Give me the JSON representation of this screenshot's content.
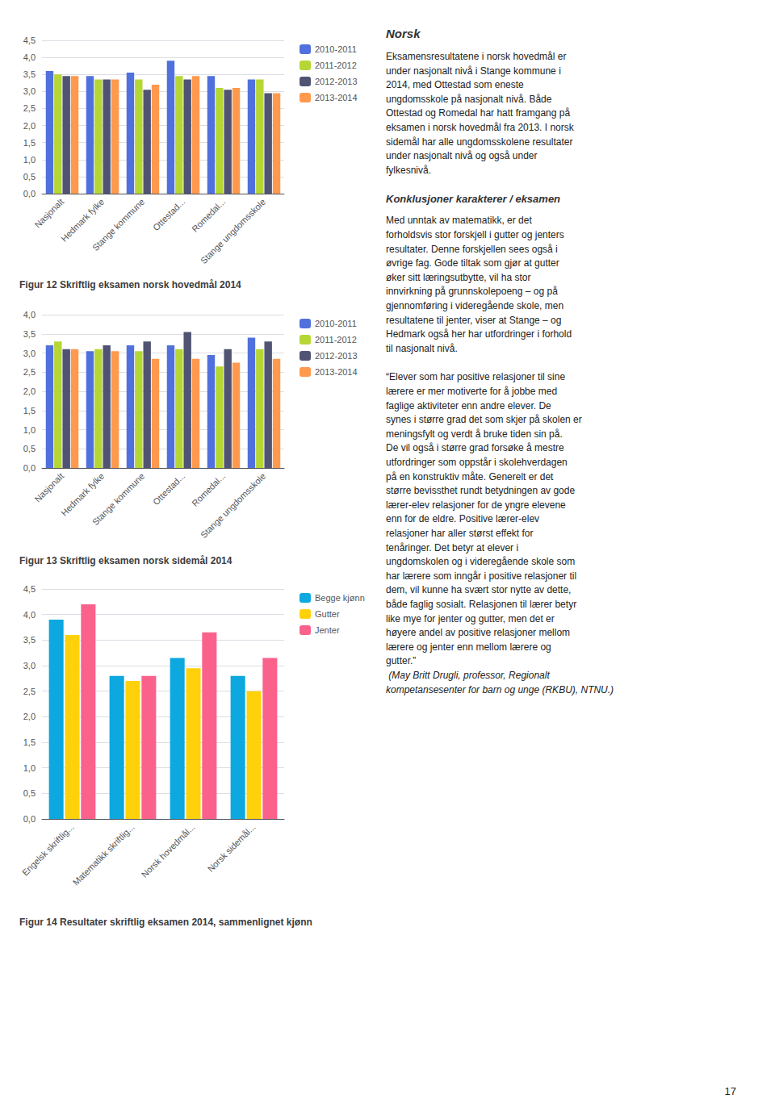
{
  "chart_data": [
    {
      "type": "bar",
      "title": "Figur 12 Skriftlig eksamen norsk hovedmål 2014",
      "categories": [
        "Nasjonalt",
        "Hedmark fylke",
        "Stange kommune",
        "Ottestad...",
        "Romedal...",
        "Stange ungdomsskole"
      ],
      "series": [
        {
          "name": "2010-2011",
          "values": [
            3.6,
            3.45,
            3.55,
            3.9,
            3.45,
            3.35
          ]
        },
        {
          "name": "2011-2012",
          "values": [
            3.5,
            3.35,
            3.35,
            3.45,
            3.1,
            3.35
          ]
        },
        {
          "name": "2012-2013",
          "values": [
            3.45,
            3.35,
            3.05,
            3.35,
            3.05,
            2.95
          ]
        },
        {
          "name": "2013-2014",
          "values": [
            3.45,
            3.35,
            3.2,
            3.45,
            3.1,
            2.95
          ]
        }
      ],
      "ylim": [
        0,
        4.5
      ],
      "yticks": [
        {
          "value": 0,
          "label": "0,0"
        },
        {
          "value": 0.5,
          "label": "0,5"
        },
        {
          "value": 1,
          "label": "1,0"
        },
        {
          "value": 1.5,
          "label": "1,5"
        },
        {
          "value": 2,
          "label": "2,0"
        },
        {
          "value": 2.5,
          "label": "2,5"
        },
        {
          "value": 3,
          "label": "3,0"
        },
        {
          "value": 3.5,
          "label": "3,5"
        },
        {
          "value": 4,
          "label": "4,0"
        },
        {
          "value": 4.5,
          "label": "4,5"
        }
      ],
      "grid": true,
      "legend": "upper right"
    },
    {
      "type": "bar",
      "title": "Figur 13 Skriftlig eksamen norsk sidemål 2014",
      "categories": [
        "Nasjonalt",
        "Hedmark fylke",
        "Stange kommune",
        "Ottestad...",
        "Romedal...",
        "Stange ungdomsskole"
      ],
      "series": [
        {
          "name": "2010-2011",
          "values": [
            3.2,
            3.05,
            3.2,
            3.2,
            2.95,
            3.4
          ]
        },
        {
          "name": "2011-2012",
          "values": [
            3.3,
            3.1,
            3.05,
            3.1,
            2.65,
            3.1
          ]
        },
        {
          "name": "2012-2013",
          "values": [
            3.1,
            3.2,
            3.3,
            3.55,
            3.1,
            3.3
          ]
        },
        {
          "name": "2013-2014",
          "values": [
            3.1,
            3.05,
            2.85,
            2.85,
            2.75,
            2.85
          ]
        }
      ],
      "ylim": [
        0,
        4.0
      ],
      "yticks": [
        {
          "value": 0,
          "label": "0,0"
        },
        {
          "value": 0.5,
          "label": "0,5"
        },
        {
          "value": 1,
          "label": "1,0"
        },
        {
          "value": 1.5,
          "label": "1,5"
        },
        {
          "value": 2,
          "label": "2,0"
        },
        {
          "value": 2.5,
          "label": "2,5"
        },
        {
          "value": 3,
          "label": "3,0"
        },
        {
          "value": 3.5,
          "label": "3,5"
        },
        {
          "value": 4,
          "label": "4,0"
        }
      ],
      "grid": true,
      "legend": "upper right"
    },
    {
      "type": "bar",
      "title": "Figur 14 Resultater skriftlig eksamen 2014, sammenlignet kjønn",
      "categories": [
        "Engelsk skriftlig...",
        "Matematikk skriftlig...",
        "Norsk hovedmål...",
        "Norsk sidemål..."
      ],
      "series": [
        {
          "name": "Begge kjønn",
          "values": [
            3.9,
            2.8,
            3.15,
            2.8
          ]
        },
        {
          "name": "Gutter",
          "values": [
            3.6,
            2.7,
            2.95,
            2.5
          ]
        },
        {
          "name": "Jenter",
          "values": [
            4.2,
            2.8,
            3.65,
            3.15
          ]
        }
      ],
      "ylim": [
        0,
        4.5
      ],
      "yticks": [
        {
          "value": 0,
          "label": "0,0"
        },
        {
          "value": 0.5,
          "label": "0,5"
        },
        {
          "value": 1,
          "label": "1,0"
        },
        {
          "value": 1.5,
          "label": "1,5"
        },
        {
          "value": 2,
          "label": "2,0"
        },
        {
          "value": 2.5,
          "label": "2,5"
        },
        {
          "value": 3,
          "label": "3,0"
        },
        {
          "value": 3.5,
          "label": "3,5"
        },
        {
          "value": 4,
          "label": "4,0"
        },
        {
          "value": 4.5,
          "label": "4,5"
        }
      ],
      "grid": true,
      "legend": "upper right"
    }
  ],
  "annotations": [
    {
      "title": "Norsk",
      "lines": [
        "Eksamensresultatene i norsk hovedmål er",
        "under nasjonalt nivå i Stange kommune i",
        "2014, med Ottestad som eneste",
        "ungdomsskole på nasjonalt nivå. Både",
        "Ottestad og Romedal har hatt framgang på",
        "eksamen i norsk hovedmål fra 2013. I norsk",
        "sidemål har alle ungdomsskolene resultater",
        "under nasjonalt nivå og også under",
        "fylkesnivå."
      ]
    },
    {
      "title": "Konklusjoner karakterer / eksamen",
      "lines": [
        "Med unntak av matematikk, er det",
        "forholdsvis stor forskjell i gutter og jenters",
        "resultater. Denne forskjellen sees også i",
        "øvrige fag. Gode tiltak som gjør at gutter",
        "øker sitt læringsutbytte, vil ha stor",
        "innvirkning på grunnskolepoeng – og på",
        "gjennomføring i videregående skole, men",
        "resultatene til jenter, viser at Stange – og",
        "Hedmark også her har utfordringer i forhold",
        "til nasjonalt nivå."
      ]
    },
    {
      "lines": [
        "“Elever som har positive relasjoner til sine",
        "lærere er mer motiverte for å jobbe med",
        "faglige aktiviteter enn andre elever. De",
        "synes i større grad det som skjer på skolen er",
        "meningsfylt og verdt å bruke tiden sin på.",
        "De vil også i større grad forsøke å mestre",
        "utfordringer som oppstår i skolehverdagen",
        "på en konstruktiv måte. Generelt er det",
        "større bevissthet rundt betydningen av gode",
        "lærer-elev relasjoner for de yngre elevene",
        "enn for de eldre. Positive lærer-elev",
        "relasjoner har aller størst effekt for",
        "tenåringer. Det betyr at elever i",
        "ungdomskolen og i videregående skole som",
        "har lærere som inngår i positive relasjoner til",
        "dem, vil kunne ha svært stor nytte av dette,",
        "både faglig sosialt. Relasjonen til lærer betyr",
        "like mye for jenter og gutter, men det er",
        "høyere andel av positive relasjoner mellom",
        "lærere og jenter enn mellom lærere og",
        "gutter.”"
      ]
    },
    {
      "lines": [
        " (May Britt Drugli, professor, Regionalt",
        "kompetansesenter for barn og unge (RKBU), NTNU.)"
      ]
    }
  ],
  "page_number": "17"
}
